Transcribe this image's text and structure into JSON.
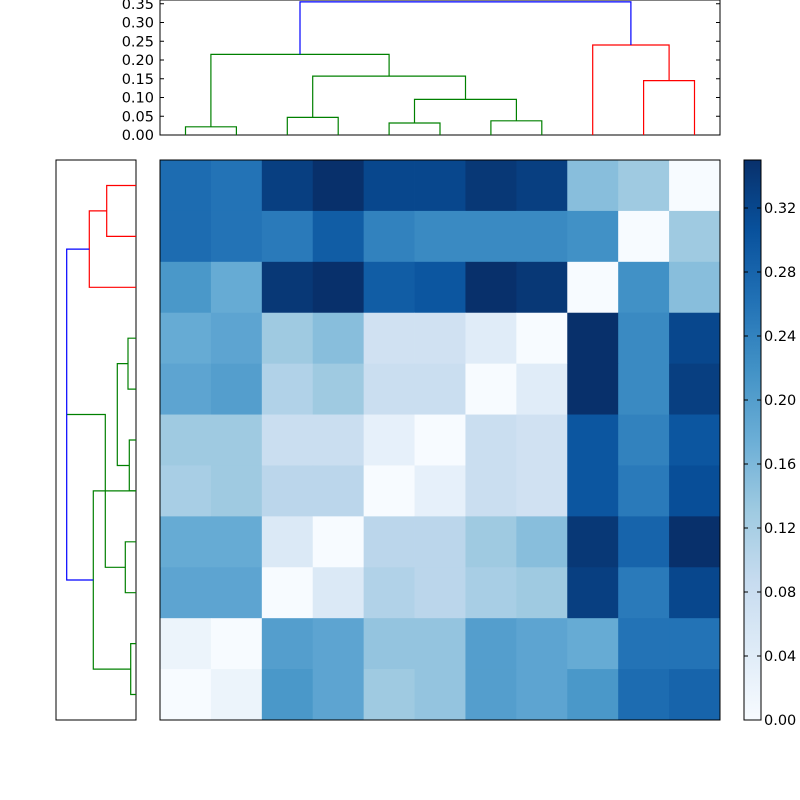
{
  "chart_data": [
    {
      "type": "dendrogram",
      "orientation": "top",
      "ylim": [
        0,
        0.36
      ],
      "ytick_labels": [
        "0.00",
        "0.05",
        "0.10",
        "0.15",
        "0.20",
        "0.25",
        "0.30",
        "0.35"
      ],
      "ytick_values": [
        0,
        0.05,
        0.1,
        0.15,
        0.2,
        0.25,
        0.3,
        0.35
      ],
      "leaves": 11,
      "links": [
        {
          "x": [
            0,
            0,
            1,
            1
          ],
          "y": [
            0,
            0.022,
            0.022,
            0
          ],
          "color": "#008000"
        },
        {
          "x": [
            2,
            2,
            3,
            3
          ],
          "y": [
            0,
            0.047,
            0.047,
            0
          ],
          "color": "#008000"
        },
        {
          "x": [
            4,
            4,
            5,
            5
          ],
          "y": [
            0,
            0.032,
            0.032,
            0
          ],
          "color": "#008000"
        },
        {
          "x": [
            6,
            6,
            7,
            7
          ],
          "y": [
            0,
            0.038,
            0.038,
            0
          ],
          "color": "#008000"
        },
        {
          "x": [
            4.5,
            4.5,
            6.5,
            6.5
          ],
          "y": [
            0.032,
            0.095,
            0.095,
            0.038
          ],
          "color": "#008000"
        },
        {
          "x": [
            2.5,
            2.5,
            5.5,
            5.5
          ],
          "y": [
            0.047,
            0.157,
            0.157,
            0.095
          ],
          "color": "#008000"
        },
        {
          "x": [
            0.5,
            0.5,
            4,
            4
          ],
          "y": [
            0.022,
            0.215,
            0.215,
            0.157
          ],
          "color": "#008000"
        },
        {
          "x": [
            9,
            9,
            10,
            10
          ],
          "y": [
            0,
            0.145,
            0.145,
            0
          ],
          "color": "#ff0000"
        },
        {
          "x": [
            8,
            8,
            9.5,
            9.5
          ],
          "y": [
            0,
            0.24,
            0.24,
            0.145
          ],
          "color": "#ff0000"
        },
        {
          "x": [
            2.25,
            2.25,
            8.75,
            8.75
          ],
          "y": [
            0.215,
            0.355,
            0.355,
            0.24
          ],
          "color": "#0000ff"
        }
      ]
    },
    {
      "type": "dendrogram",
      "orientation": "left",
      "leaves": 11,
      "links": [
        {
          "leaves": [
            0,
            1
          ],
          "height": 0.22,
          "color": "#ff0000"
        },
        {
          "leaves": [
            0.5,
            2
          ],
          "height": 0.35,
          "color": "#ff0000"
        },
        {
          "leaves": [
            3,
            4
          ],
          "height": 0.06,
          "color": "#008000"
        },
        {
          "leaves": [
            5,
            6
          ],
          "height": 0.05,
          "color": "#008000"
        },
        {
          "leaves": [
            3.5,
            5.5
          ],
          "height": 0.14,
          "color": "#008000"
        },
        {
          "leaves": [
            7,
            8
          ],
          "height": 0.08,
          "color": "#008000"
        },
        {
          "leaves": [
            4.5,
            7.5
          ],
          "height": 0.23,
          "color": "#008000"
        },
        {
          "leaves": [
            9,
            10
          ],
          "height": 0.04,
          "color": "#008000"
        },
        {
          "leaves": [
            6,
            9.5
          ],
          "height": 0.32,
          "color": "#008000"
        },
        {
          "leaves": [
            1.25,
            7.75
          ],
          "height": 0.52,
          "color": "#0000ff"
        }
      ]
    },
    {
      "type": "heatmap",
      "rows": 11,
      "cols": 11,
      "vmin": 0,
      "vmax": 0.35,
      "colormap": "Blues",
      "values": [
        [
          0.27,
          0.26,
          0.33,
          0.35,
          0.32,
          0.32,
          0.34,
          0.33,
          0.15,
          0.13,
          0.0
        ],
        [
          0.27,
          0.26,
          0.25,
          0.29,
          0.24,
          0.23,
          0.23,
          0.23,
          0.22,
          0.0,
          0.13
        ],
        [
          0.21,
          0.18,
          0.34,
          0.35,
          0.29,
          0.3,
          0.35,
          0.34,
          0.0,
          0.22,
          0.15
        ],
        [
          0.18,
          0.19,
          0.13,
          0.15,
          0.07,
          0.07,
          0.04,
          0.0,
          0.35,
          0.23,
          0.32
        ],
        [
          0.19,
          0.2,
          0.11,
          0.13,
          0.08,
          0.08,
          0.0,
          0.04,
          0.35,
          0.23,
          0.33
        ],
        [
          0.13,
          0.13,
          0.08,
          0.08,
          0.03,
          0.0,
          0.08,
          0.07,
          0.3,
          0.24,
          0.3
        ],
        [
          0.12,
          0.13,
          0.1,
          0.1,
          0.0,
          0.03,
          0.08,
          0.07,
          0.3,
          0.25,
          0.31
        ],
        [
          0.18,
          0.18,
          0.05,
          0.0,
          0.1,
          0.1,
          0.13,
          0.15,
          0.34,
          0.28,
          0.35
        ],
        [
          0.19,
          0.19,
          0.0,
          0.05,
          0.11,
          0.1,
          0.12,
          0.13,
          0.33,
          0.25,
          0.32
        ],
        [
          0.02,
          0.0,
          0.2,
          0.19,
          0.14,
          0.14,
          0.2,
          0.19,
          0.18,
          0.26,
          0.26
        ],
        [
          0.0,
          0.02,
          0.21,
          0.19,
          0.13,
          0.14,
          0.2,
          0.19,
          0.21,
          0.27,
          0.28
        ]
      ]
    },
    {
      "type": "colorbar",
      "range": [
        0,
        0.35
      ],
      "tick_labels": [
        "0.00",
        "0.04",
        "0.08",
        "0.12",
        "0.16",
        "0.20",
        "0.24",
        "0.28",
        "0.32"
      ],
      "tick_values": [
        0,
        0.04,
        0.08,
        0.12,
        0.16,
        0.2,
        0.24,
        0.28,
        0.32
      ]
    }
  ]
}
